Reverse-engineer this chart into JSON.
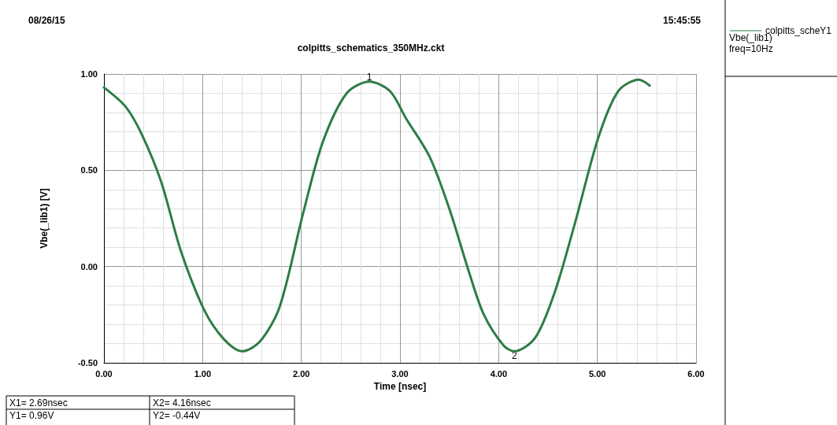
{
  "chart_data": {
    "type": "line",
    "title": "colpitts_schematics_350MHz.ckt",
    "xlabel": "Time [nsec]",
    "ylabel": "Vbe(_lib1) [V]",
    "x": [
      0,
      0.22,
      0.38,
      0.58,
      0.78,
      1.02,
      1.22,
      1.4,
      1.58,
      1.78,
      2.02,
      2.22,
      2.46,
      2.69,
      2.9,
      3.06,
      3.3,
      3.5,
      3.7,
      3.85,
      4.05,
      4.16,
      4.37,
      4.57,
      4.77,
      5.01,
      5.21,
      5.42,
      5.53
    ],
    "series": [
      {
        "name": "colpitts_scheY1",
        "color": "#2e7d45",
        "values": [
          0.93,
          0.83,
          0.69,
          0.44,
          0.08,
          -0.23,
          -0.38,
          -0.44,
          -0.39,
          -0.21,
          0.28,
          0.65,
          0.9,
          0.96,
          0.91,
          0.77,
          0.57,
          0.3,
          -0.03,
          -0.25,
          -0.41,
          -0.44,
          -0.37,
          -0.13,
          0.22,
          0.67,
          0.91,
          0.97,
          0.94
        ]
      }
    ],
    "xlim": [
      0,
      6
    ],
    "xticks": [
      {
        "value": 0,
        "label": "0.00"
      },
      {
        "value": 1,
        "label": "1.00"
      },
      {
        "value": 2,
        "label": "2.00"
      },
      {
        "value": 3,
        "label": "3.00"
      },
      {
        "value": 4,
        "label": "4.00"
      },
      {
        "value": 5,
        "label": "5.00"
      },
      {
        "value": 6,
        "label": "6.00"
      }
    ],
    "ylim": [
      -0.5,
      1
    ],
    "yticks": [
      {
        "value": -0.5,
        "label": "-0.50"
      },
      {
        "value": 0,
        "label": "0.00"
      },
      {
        "value": 0.5,
        "label": "0.50"
      },
      {
        "value": 1,
        "label": "1.00"
      }
    ],
    "grid": true,
    "legend": "top right",
    "marker": "none",
    "line_style": "solid",
    "annotations": [
      "08/26/15",
      "15:45:55",
      "Vbe(_lib1)",
      "freq=10Hz",
      "X1= 2.69nsec",
      "Y1= 0.96V",
      "X2= 4.16nsec",
      "Y2= -0.44V",
      {
        "text": "1",
        "x": 2.69,
        "y": 0.96
      },
      {
        "text": "2",
        "x": 4.16,
        "y": -0.44
      }
    ]
  }
}
